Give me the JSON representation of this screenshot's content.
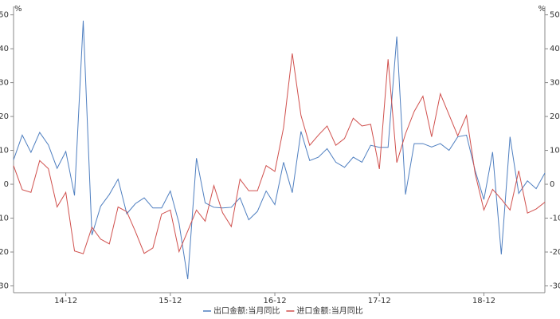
{
  "chart_data": {
    "type": "line",
    "y_unit": "%",
    "y2_unit": "%",
    "categories": [
      null,
      null,
      null,
      null,
      null,
      null,
      "14-12",
      null,
      null,
      null,
      null,
      null,
      null,
      null,
      null,
      null,
      null,
      null,
      "15-12",
      null,
      null,
      null,
      null,
      null,
      null,
      null,
      null,
      null,
      null,
      null,
      "16-12",
      null,
      null,
      null,
      null,
      null,
      null,
      null,
      null,
      null,
      null,
      null,
      "17-12",
      null,
      null,
      null,
      null,
      null,
      null,
      null,
      null,
      null,
      null,
      null,
      "18-12",
      null,
      null,
      null,
      null,
      null,
      null,
      null
    ],
    "series": [
      {
        "name": "出口金额:当月同比",
        "color": "#4f7fc0",
        "values": [
          7.2,
          14.5,
          9.4,
          15.3,
          11.6,
          4.7,
          9.7,
          -3.3,
          48.3,
          -15,
          -6.5,
          -3,
          1.5,
          -8.7,
          -5.7,
          -4,
          -7,
          -7,
          -2,
          -11.5,
          -28,
          7.7,
          -5.5,
          -6.8,
          -7,
          -6.8,
          -4,
          -10.5,
          -8,
          -2,
          -6,
          6.5,
          -2.5,
          15.6,
          7,
          8,
          10.5,
          6.5,
          5,
          8,
          6.5,
          11.5,
          10.9,
          10.9,
          43.6,
          -3,
          12,
          12,
          11,
          12,
          10,
          14,
          14.5,
          4,
          -4.5,
          9.5,
          -20.7,
          14,
          -2.7,
          1,
          -1.3,
          3.3
        ]
      },
      {
        "name": "进口金额:当月同比",
        "color": "#d0504d",
        "values": [
          5.5,
          -1.6,
          -2.4,
          7,
          4.6,
          -6.7,
          -2.4,
          -19.7,
          -20.5,
          -12.7,
          -16.2,
          -17.6,
          -6.7,
          -8.1,
          -14,
          -20.4,
          -18.8,
          -8.8,
          -7.6,
          -19.9,
          -13.8,
          -7.6,
          -10.9,
          -0.4,
          -8.4,
          -12.5,
          1.5,
          -1.9,
          -1.9,
          5.5,
          3.8,
          16.7,
          38.6,
          20.3,
          11.5,
          14.5,
          17.2,
          11.5,
          13.5,
          19.5,
          17.2,
          17.7,
          4.5,
          36.9,
          6.4,
          14.9,
          21.5,
          26,
          14,
          26.7,
          20.5,
          14.3,
          20.3,
          3.1,
          -7.6,
          -1.5,
          -4.4,
          -7.6,
          4,
          -8.5,
          -7.3,
          -5.3
        ]
      }
    ],
    "ylim": [
      -32,
      52.5
    ],
    "yticks": [
      -30,
      -20,
      -10,
      0,
      10,
      20,
      30,
      40,
      50
    ],
    "y2lim": [
      -32,
      52.5
    ],
    "y2ticks": [
      -30,
      -20,
      -10,
      0,
      10,
      20,
      30,
      40,
      50
    ],
    "grid": false
  }
}
